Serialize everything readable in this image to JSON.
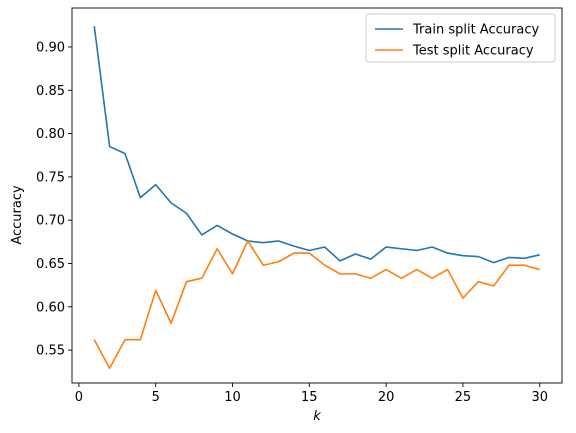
{
  "chart_data": {
    "type": "line",
    "title": "",
    "xlabel": "k",
    "ylabel": "Accuracy",
    "xlim": [
      -0.45,
      31.45
    ],
    "ylim": [
      0.512,
      0.945
    ],
    "xticks": [
      0,
      5,
      10,
      15,
      20,
      25,
      30
    ],
    "yticks": [
      0.55,
      0.6,
      0.65,
      0.7,
      0.75,
      0.8,
      0.85,
      0.9
    ],
    "legend_position": "top-right",
    "grid": false,
    "x": [
      1,
      2,
      3,
      4,
      5,
      6,
      7,
      8,
      9,
      10,
      11,
      12,
      13,
      14,
      15,
      16,
      17,
      18,
      19,
      20,
      21,
      22,
      23,
      24,
      25,
      26,
      27,
      28,
      29,
      30
    ],
    "series": [
      {
        "name": "Train split Accuracy",
        "color": "#1f77b4",
        "values": [
          0.924,
          0.785,
          0.777,
          0.726,
          0.741,
          0.72,
          0.708,
          0.683,
          0.694,
          0.684,
          0.676,
          0.674,
          0.676,
          0.67,
          0.665,
          0.669,
          0.653,
          0.661,
          0.655,
          0.669,
          0.667,
          0.665,
          0.669,
          0.662,
          0.659,
          0.658,
          0.651,
          0.657,
          0.656,
          0.66
        ]
      },
      {
        "name": "Test split Accuracy",
        "color": "#ff7f0e",
        "values": [
          0.562,
          0.529,
          0.562,
          0.562,
          0.619,
          0.581,
          0.629,
          0.633,
          0.667,
          0.638,
          0.676,
          0.648,
          0.652,
          0.662,
          0.662,
          0.648,
          0.638,
          0.638,
          0.633,
          0.643,
          0.633,
          0.643,
          0.633,
          0.643,
          0.61,
          0.629,
          0.624,
          0.648,
          0.648,
          0.643
        ]
      }
    ]
  }
}
